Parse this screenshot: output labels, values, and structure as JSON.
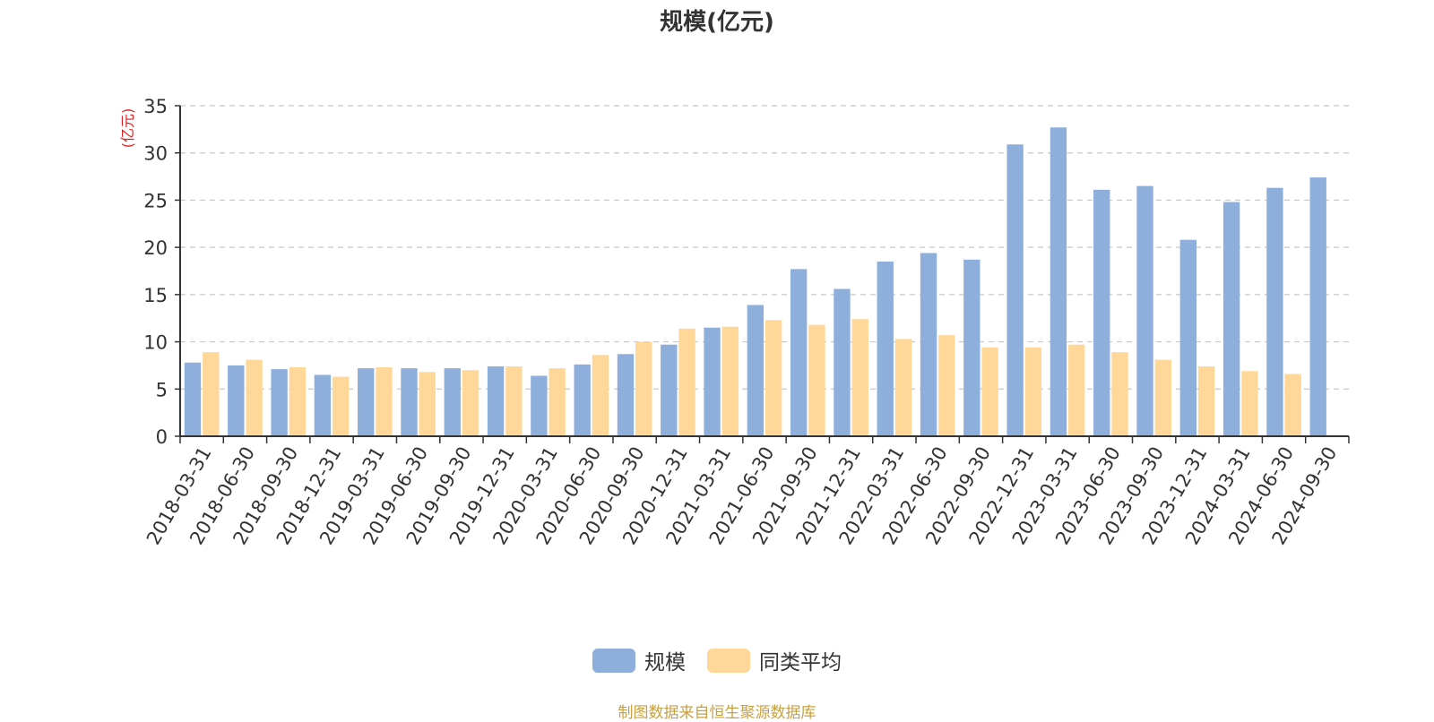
{
  "chart_data": {
    "type": "bar",
    "title": "规模(亿元)",
    "ylabel": "(亿元)",
    "ylim": [
      0,
      35
    ],
    "yticks": [
      0,
      5,
      10,
      15,
      20,
      25,
      30,
      35
    ],
    "grid": true,
    "legend_position": "bottom-center",
    "categories": [
      "2018-03-31",
      "2018-06-30",
      "2018-09-30",
      "2018-12-31",
      "2019-03-31",
      "2019-06-30",
      "2019-09-30",
      "2019-12-31",
      "2020-03-31",
      "2020-06-30",
      "2020-09-30",
      "2020-12-31",
      "2021-03-31",
      "2021-06-30",
      "2021-09-30",
      "2021-12-31",
      "2022-03-31",
      "2022-06-30",
      "2022-09-30",
      "2022-12-31",
      "2023-03-31",
      "2023-06-30",
      "2023-09-30",
      "2023-12-31",
      "2024-03-31",
      "2024-06-30",
      "2024-09-30"
    ],
    "series": [
      {
        "name": "规模",
        "color": "#8eaedb",
        "values": [
          7.8,
          7.5,
          7.1,
          6.5,
          7.2,
          7.2,
          7.2,
          7.4,
          6.4,
          7.6,
          8.7,
          9.7,
          11.5,
          13.9,
          17.7,
          15.6,
          18.5,
          19.4,
          18.7,
          30.9,
          32.7,
          26.1,
          26.5,
          20.8,
          24.8,
          26.3,
          27.4
        ]
      },
      {
        "name": "同类平均",
        "color": "#ffd899",
        "values": [
          8.9,
          8.1,
          7.3,
          6.3,
          7.3,
          6.8,
          7.0,
          7.4,
          7.2,
          8.6,
          10.0,
          11.4,
          11.6,
          12.3,
          11.8,
          12.4,
          10.3,
          10.7,
          9.4,
          9.4,
          9.7,
          8.9,
          8.1,
          7.4,
          6.9,
          6.6,
          null
        ]
      }
    ]
  },
  "source_note": "制图数据来自恒生聚源数据库"
}
